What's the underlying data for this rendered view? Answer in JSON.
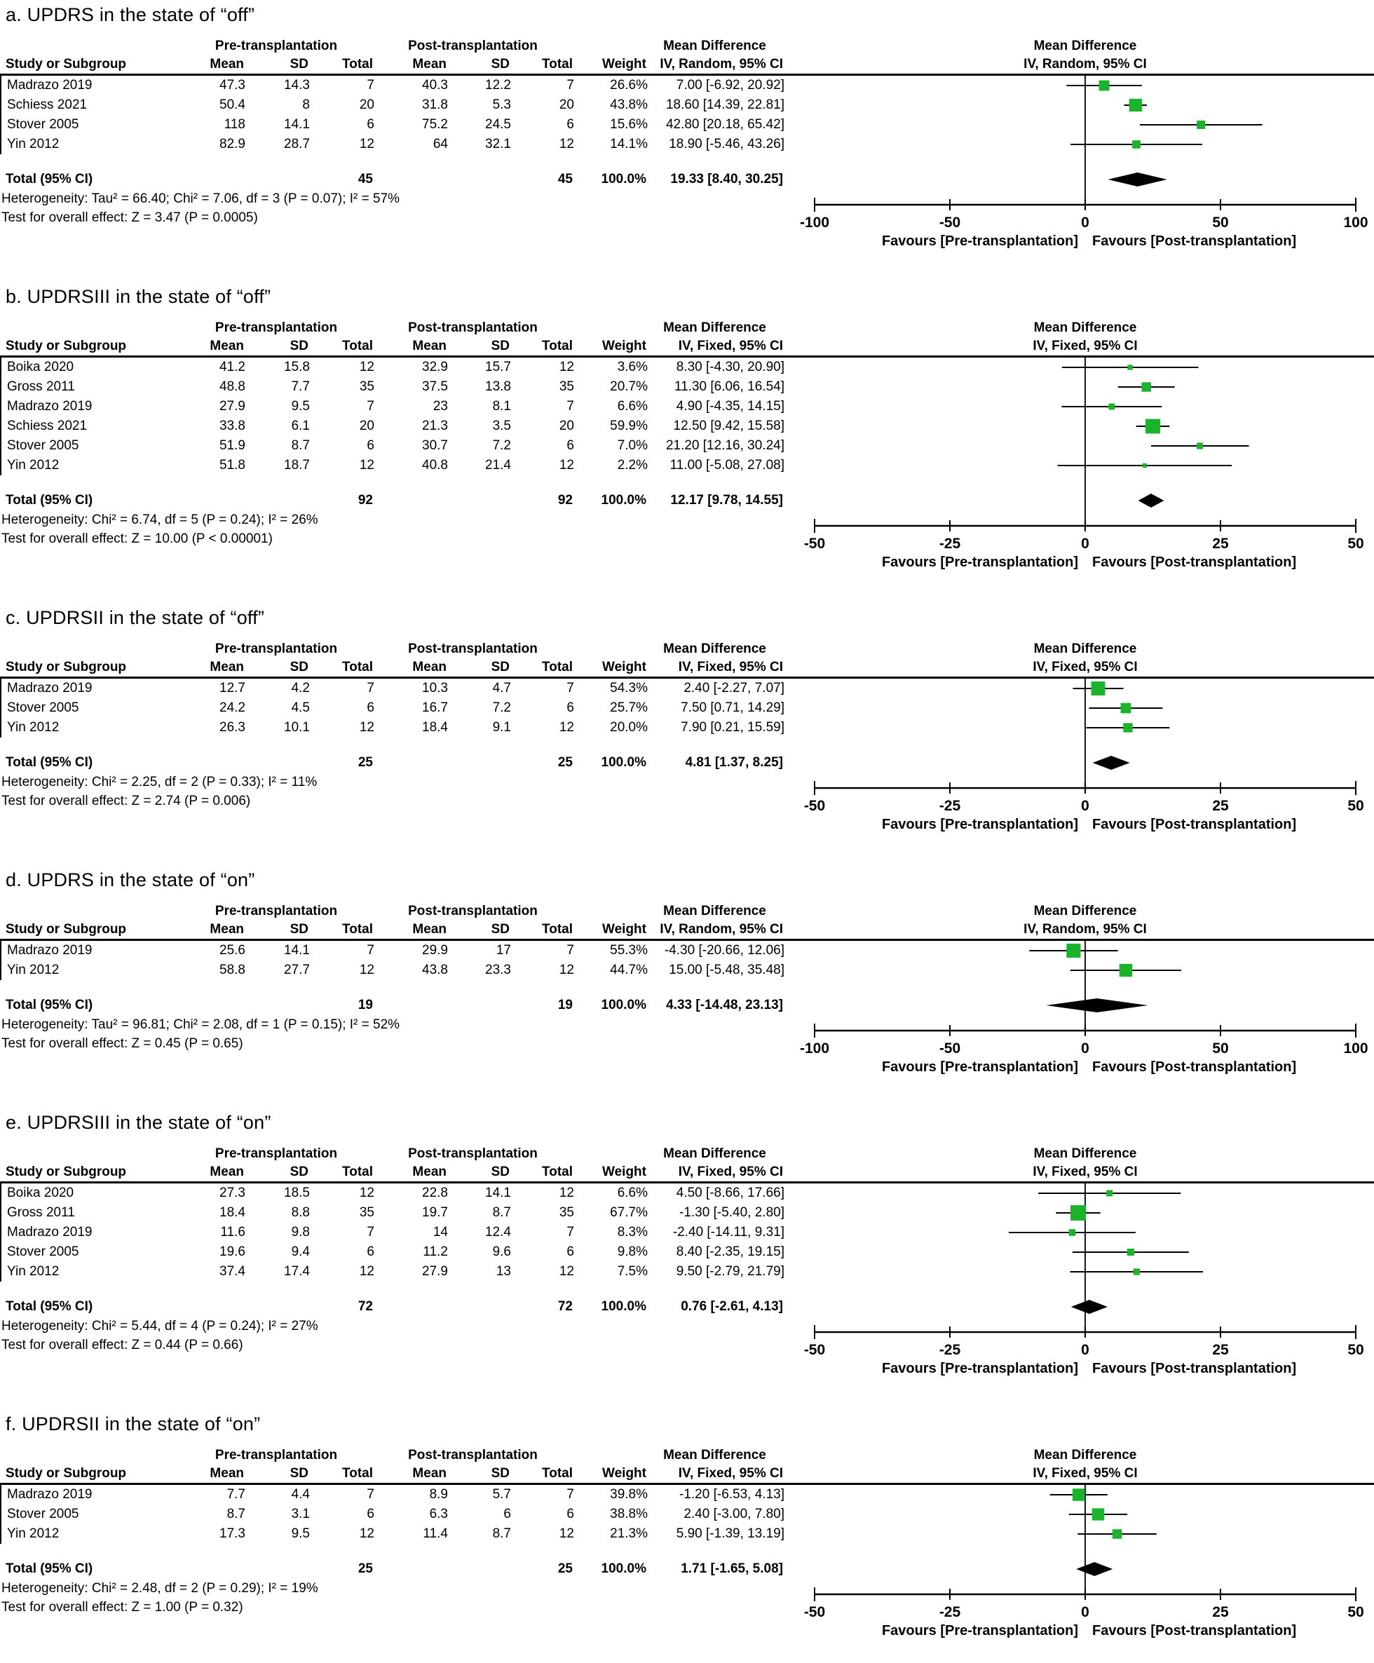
{
  "colors": {
    "marker": "#1ab32b",
    "diamond": "#000000",
    "line": "#000000"
  },
  "table_headers": {
    "study": "Study or Subgroup",
    "pre_group": "Pre-transplantation",
    "post_group": "Post-transplantation",
    "mean": "Mean",
    "sd": "SD",
    "total": "Total",
    "weight": "Weight",
    "md_group": "Mean Difference"
  },
  "total_label": "Total (95% CI)",
  "favours_left": "Favours [Pre-transplantation]",
  "favours_right": "Favours [Post-transplantation]",
  "chart_data": [
    {
      "type": "forest",
      "panel": "a",
      "title": "a. UPDRS in the state of “off”",
      "effect_label": "IV, Random, 95% CI",
      "xlim": [
        -100,
        100
      ],
      "ticks": [
        -100,
        -50,
        0,
        50,
        100
      ],
      "tick_labels": [
        "-100",
        "-50",
        "0",
        "50",
        "100"
      ],
      "studies": [
        {
          "study": "Madrazo 2019",
          "pre_mean": "47.3",
          "pre_sd": "14.3",
          "pre_n": "7",
          "post_mean": "40.3",
          "post_sd": "12.2",
          "post_n": "7",
          "weight": "26.6%",
          "weight_pct": 26.6,
          "md": 7.0,
          "ci": [
            -6.92,
            20.92
          ],
          "md_ci_text": "7.00 [-6.92, 20.92]"
        },
        {
          "study": "Schiess 2021",
          "pre_mean": "50.4",
          "pre_sd": "8",
          "pre_n": "20",
          "post_mean": "31.8",
          "post_sd": "5.3",
          "post_n": "20",
          "weight": "43.8%",
          "weight_pct": 43.8,
          "md": 18.6,
          "ci": [
            14.39,
            22.81
          ],
          "md_ci_text": "18.60 [14.39, 22.81]"
        },
        {
          "study": "Stover 2005",
          "pre_mean": "118",
          "pre_sd": "14.1",
          "pre_n": "6",
          "post_mean": "75.2",
          "post_sd": "24.5",
          "post_n": "6",
          "weight": "15.6%",
          "weight_pct": 15.6,
          "md": 42.8,
          "ci": [
            20.18,
            65.42
          ],
          "md_ci_text": "42.80 [20.18, 65.42]"
        },
        {
          "study": "Yin 2012",
          "pre_mean": "82.9",
          "pre_sd": "28.7",
          "pre_n": "12",
          "post_mean": "64",
          "post_sd": "32.1",
          "post_n": "12",
          "weight": "14.1%",
          "weight_pct": 14.1,
          "md": 18.9,
          "ci": [
            -5.46,
            43.26
          ],
          "md_ci_text": "18.90 [-5.46, 43.26]"
        }
      ],
      "total": {
        "pre_n": "45",
        "post_n": "45",
        "weight": "100.0%",
        "md": 19.33,
        "ci": [
          8.4,
          30.25
        ],
        "md_ci_text": "19.33 [8.40, 30.25]"
      },
      "heterogeneity": "Heterogeneity: Tau² = 66.40; Chi² = 7.06, df = 3 (P = 0.07); I² = 57%",
      "overall_effect": "Test for overall effect: Z = 3.47 (P = 0.0005)"
    },
    {
      "type": "forest",
      "panel": "b",
      "title": "b. UPDRSIII in the state of “off”",
      "effect_label": "IV, Fixed, 95% CI",
      "xlim": [
        -50,
        50
      ],
      "ticks": [
        -50,
        -25,
        0,
        25,
        50
      ],
      "tick_labels": [
        "-50",
        "-25",
        "0",
        "25",
        "50"
      ],
      "studies": [
        {
          "study": "Boika 2020",
          "pre_mean": "41.2",
          "pre_sd": "15.8",
          "pre_n": "12",
          "post_mean": "32.9",
          "post_sd": "15.7",
          "post_n": "12",
          "weight": "3.6%",
          "weight_pct": 3.6,
          "md": 8.3,
          "ci": [
            -4.3,
            20.9
          ],
          "md_ci_text": "8.30 [-4.30, 20.90]"
        },
        {
          "study": "Gross 2011",
          "pre_mean": "48.8",
          "pre_sd": "7.7",
          "pre_n": "35",
          "post_mean": "37.5",
          "post_sd": "13.8",
          "post_n": "35",
          "weight": "20.7%",
          "weight_pct": 20.7,
          "md": 11.3,
          "ci": [
            6.06,
            16.54
          ],
          "md_ci_text": "11.30 [6.06, 16.54]"
        },
        {
          "study": "Madrazo 2019",
          "pre_mean": "27.9",
          "pre_sd": "9.5",
          "pre_n": "7",
          "post_mean": "23",
          "post_sd": "8.1",
          "post_n": "7",
          "weight": "6.6%",
          "weight_pct": 6.6,
          "md": 4.9,
          "ci": [
            -4.35,
            14.15
          ],
          "md_ci_text": "4.90 [-4.35, 14.15]"
        },
        {
          "study": "Schiess 2021",
          "pre_mean": "33.8",
          "pre_sd": "6.1",
          "pre_n": "20",
          "post_mean": "21.3",
          "post_sd": "3.5",
          "post_n": "20",
          "weight": "59.9%",
          "weight_pct": 59.9,
          "md": 12.5,
          "ci": [
            9.42,
            15.58
          ],
          "md_ci_text": "12.50 [9.42, 15.58]"
        },
        {
          "study": "Stover 2005",
          "pre_mean": "51.9",
          "pre_sd": "8.7",
          "pre_n": "6",
          "post_mean": "30.7",
          "post_sd": "7.2",
          "post_n": "6",
          "weight": "7.0%",
          "weight_pct": 7.0,
          "md": 21.2,
          "ci": [
            12.16,
            30.24
          ],
          "md_ci_text": "21.20 [12.16, 30.24]"
        },
        {
          "study": "Yin 2012",
          "pre_mean": "51.8",
          "pre_sd": "18.7",
          "pre_n": "12",
          "post_mean": "40.8",
          "post_sd": "21.4",
          "post_n": "12",
          "weight": "2.2%",
          "weight_pct": 2.2,
          "md": 11.0,
          "ci": [
            -5.08,
            27.08
          ],
          "md_ci_text": "11.00 [-5.08, 27.08]"
        }
      ],
      "total": {
        "pre_n": "92",
        "post_n": "92",
        "weight": "100.0%",
        "md": 12.17,
        "ci": [
          9.78,
          14.55
        ],
        "md_ci_text": "12.17 [9.78, 14.55]"
      },
      "heterogeneity": "Heterogeneity: Chi² = 6.74, df = 5 (P = 0.24); I² = 26%",
      "overall_effect": "Test for overall effect: Z = 10.00 (P < 0.00001)"
    },
    {
      "type": "forest",
      "panel": "c",
      "title": "c. UPDRSII in the state of “off”",
      "effect_label": "IV, Fixed, 95% CI",
      "xlim": [
        -50,
        50
      ],
      "ticks": [
        -50,
        -25,
        0,
        25,
        50
      ],
      "tick_labels": [
        "-50",
        "-25",
        "0",
        "25",
        "50"
      ],
      "studies": [
        {
          "study": "Madrazo 2019",
          "pre_mean": "12.7",
          "pre_sd": "4.2",
          "pre_n": "7",
          "post_mean": "10.3",
          "post_sd": "4.7",
          "post_n": "7",
          "weight": "54.3%",
          "weight_pct": 54.3,
          "md": 2.4,
          "ci": [
            -2.27,
            7.07
          ],
          "md_ci_text": "2.40 [-2.27, 7.07]"
        },
        {
          "study": "Stover 2005",
          "pre_mean": "24.2",
          "pre_sd": "4.5",
          "pre_n": "6",
          "post_mean": "16.7",
          "post_sd": "7.2",
          "post_n": "6",
          "weight": "25.7%",
          "weight_pct": 25.7,
          "md": 7.5,
          "ci": [
            0.71,
            14.29
          ],
          "md_ci_text": "7.50 [0.71, 14.29]"
        },
        {
          "study": "Yin 2012",
          "pre_mean": "26.3",
          "pre_sd": "10.1",
          "pre_n": "12",
          "post_mean": "18.4",
          "post_sd": "9.1",
          "post_n": "12",
          "weight": "20.0%",
          "weight_pct": 20.0,
          "md": 7.9,
          "ci": [
            0.21,
            15.59
          ],
          "md_ci_text": "7.90 [0.21, 15.59]"
        }
      ],
      "total": {
        "pre_n": "25",
        "post_n": "25",
        "weight": "100.0%",
        "md": 4.81,
        "ci": [
          1.37,
          8.25
        ],
        "md_ci_text": "4.81 [1.37, 8.25]"
      },
      "heterogeneity": "Heterogeneity: Chi² = 2.25, df = 2 (P = 0.33); I² = 11%",
      "overall_effect": "Test for overall effect: Z = 2.74 (P = 0.006)"
    },
    {
      "type": "forest",
      "panel": "d",
      "title": "d. UPDRS in the state of “on”",
      "effect_label": "IV, Random, 95% CI",
      "xlim": [
        -100,
        100
      ],
      "ticks": [
        -100,
        -50,
        0,
        50,
        100
      ],
      "tick_labels": [
        "-100",
        "-50",
        "0",
        "50",
        "100"
      ],
      "studies": [
        {
          "study": "Madrazo 2019",
          "pre_mean": "25.6",
          "pre_sd": "14.1",
          "pre_n": "7",
          "post_mean": "29.9",
          "post_sd": "17",
          "post_n": "7",
          "weight": "55.3%",
          "weight_pct": 55.3,
          "md": -4.3,
          "ci": [
            -20.66,
            12.06
          ],
          "md_ci_text": "-4.30 [-20.66, 12.06]"
        },
        {
          "study": "Yin 2012",
          "pre_mean": "58.8",
          "pre_sd": "27.7",
          "pre_n": "12",
          "post_mean": "43.8",
          "post_sd": "23.3",
          "post_n": "12",
          "weight": "44.7%",
          "weight_pct": 44.7,
          "md": 15.0,
          "ci": [
            -5.48,
            35.48
          ],
          "md_ci_text": "15.00 [-5.48, 35.48]"
        }
      ],
      "total": {
        "pre_n": "19",
        "post_n": "19",
        "weight": "100.0%",
        "md": 4.33,
        "ci": [
          -14.48,
          23.13
        ],
        "md_ci_text": "4.33 [-14.48, 23.13]"
      },
      "heterogeneity": "Heterogeneity: Tau² = 96.81; Chi² = 2.08, df = 1 (P = 0.15); I² = 52%",
      "overall_effect": "Test for overall effect: Z = 0.45 (P = 0.65)"
    },
    {
      "type": "forest",
      "panel": "e",
      "title": "e. UPDRSIII  in the state of “on”",
      "effect_label": "IV, Fixed, 95% CI",
      "xlim": [
        -50,
        50
      ],
      "ticks": [
        -50,
        -25,
        0,
        25,
        50
      ],
      "tick_labels": [
        "-50",
        "-25",
        "0",
        "25",
        "50"
      ],
      "studies": [
        {
          "study": "Boika 2020",
          "pre_mean": "27.3",
          "pre_sd": "18.5",
          "pre_n": "12",
          "post_mean": "22.8",
          "post_sd": "14.1",
          "post_n": "12",
          "weight": "6.6%",
          "weight_pct": 6.6,
          "md": 4.5,
          "ci": [
            -8.66,
            17.66
          ],
          "md_ci_text": "4.50 [-8.66, 17.66]"
        },
        {
          "study": "Gross 2011",
          "pre_mean": "18.4",
          "pre_sd": "8.8",
          "pre_n": "35",
          "post_mean": "19.7",
          "post_sd": "8.7",
          "post_n": "35",
          "weight": "67.7%",
          "weight_pct": 67.7,
          "md": -1.3,
          "ci": [
            -5.4,
            2.8
          ],
          "md_ci_text": "-1.30 [-5.40, 2.80]"
        },
        {
          "study": "Madrazo 2019",
          "pre_mean": "11.6",
          "pre_sd": "9.8",
          "pre_n": "7",
          "post_mean": "14",
          "post_sd": "12.4",
          "post_n": "7",
          "weight": "8.3%",
          "weight_pct": 8.3,
          "md": -2.4,
          "ci": [
            -14.11,
            9.31
          ],
          "md_ci_text": "-2.40 [-14.11, 9.31]"
        },
        {
          "study": "Stover 2005",
          "pre_mean": "19.6",
          "pre_sd": "9.4",
          "pre_n": "6",
          "post_mean": "11.2",
          "post_sd": "9.6",
          "post_n": "6",
          "weight": "9.8%",
          "weight_pct": 9.8,
          "md": 8.4,
          "ci": [
            -2.35,
            19.15
          ],
          "md_ci_text": "8.40 [-2.35, 19.15]"
        },
        {
          "study": "Yin 2012",
          "pre_mean": "37.4",
          "pre_sd": "17.4",
          "pre_n": "12",
          "post_mean": "27.9",
          "post_sd": "13",
          "post_n": "12",
          "weight": "7.5%",
          "weight_pct": 7.5,
          "md": 9.5,
          "ci": [
            -2.79,
            21.79
          ],
          "md_ci_text": "9.50 [-2.79, 21.79]"
        }
      ],
      "total": {
        "pre_n": "72",
        "post_n": "72",
        "weight": "100.0%",
        "md": 0.76,
        "ci": [
          -2.61,
          4.13
        ],
        "md_ci_text": "0.76 [-2.61, 4.13]"
      },
      "heterogeneity": "Heterogeneity: Chi² = 5.44, df = 4 (P = 0.24); I² = 27%",
      "overall_effect": "Test for overall effect: Z = 0.44 (P = 0.66)"
    },
    {
      "type": "forest",
      "panel": "f",
      "title": "f. UPDRSII in the state of “on”",
      "effect_label": "IV, Fixed, 95% CI",
      "xlim": [
        -50,
        50
      ],
      "ticks": [
        -50,
        -25,
        0,
        25,
        50
      ],
      "tick_labels": [
        "-50",
        "-25",
        "0",
        "25",
        "50"
      ],
      "studies": [
        {
          "study": "Madrazo 2019",
          "pre_mean": "7.7",
          "pre_sd": "4.4",
          "pre_n": "7",
          "post_mean": "8.9",
          "post_sd": "5.7",
          "post_n": "7",
          "weight": "39.8%",
          "weight_pct": 39.8,
          "md": -1.2,
          "ci": [
            -6.53,
            4.13
          ],
          "md_ci_text": "-1.20 [-6.53, 4.13]"
        },
        {
          "study": "Stover 2005",
          "pre_mean": "8.7",
          "pre_sd": "3.1",
          "pre_n": "6",
          "post_mean": "6.3",
          "post_sd": "6",
          "post_n": "6",
          "weight": "38.8%",
          "weight_pct": 38.8,
          "md": 2.4,
          "ci": [
            -3.0,
            7.8
          ],
          "md_ci_text": "2.40 [-3.00, 7.80]"
        },
        {
          "study": "Yin 2012",
          "pre_mean": "17.3",
          "pre_sd": "9.5",
          "pre_n": "12",
          "post_mean": "11.4",
          "post_sd": "8.7",
          "post_n": "12",
          "weight": "21.3%",
          "weight_pct": 21.3,
          "md": 5.9,
          "ci": [
            -1.39,
            13.19
          ],
          "md_ci_text": "5.90 [-1.39, 13.19]"
        }
      ],
      "total": {
        "pre_n": "25",
        "post_n": "25",
        "weight": "100.0%",
        "md": 1.71,
        "ci": [
          -1.65,
          5.08
        ],
        "md_ci_text": "1.71 [-1.65, 5.08]"
      },
      "heterogeneity": "Heterogeneity: Chi² = 2.48, df = 2 (P = 0.29); I² = 19%",
      "overall_effect": "Test for overall effect: Z = 1.00 (P = 0.32)"
    }
  ]
}
